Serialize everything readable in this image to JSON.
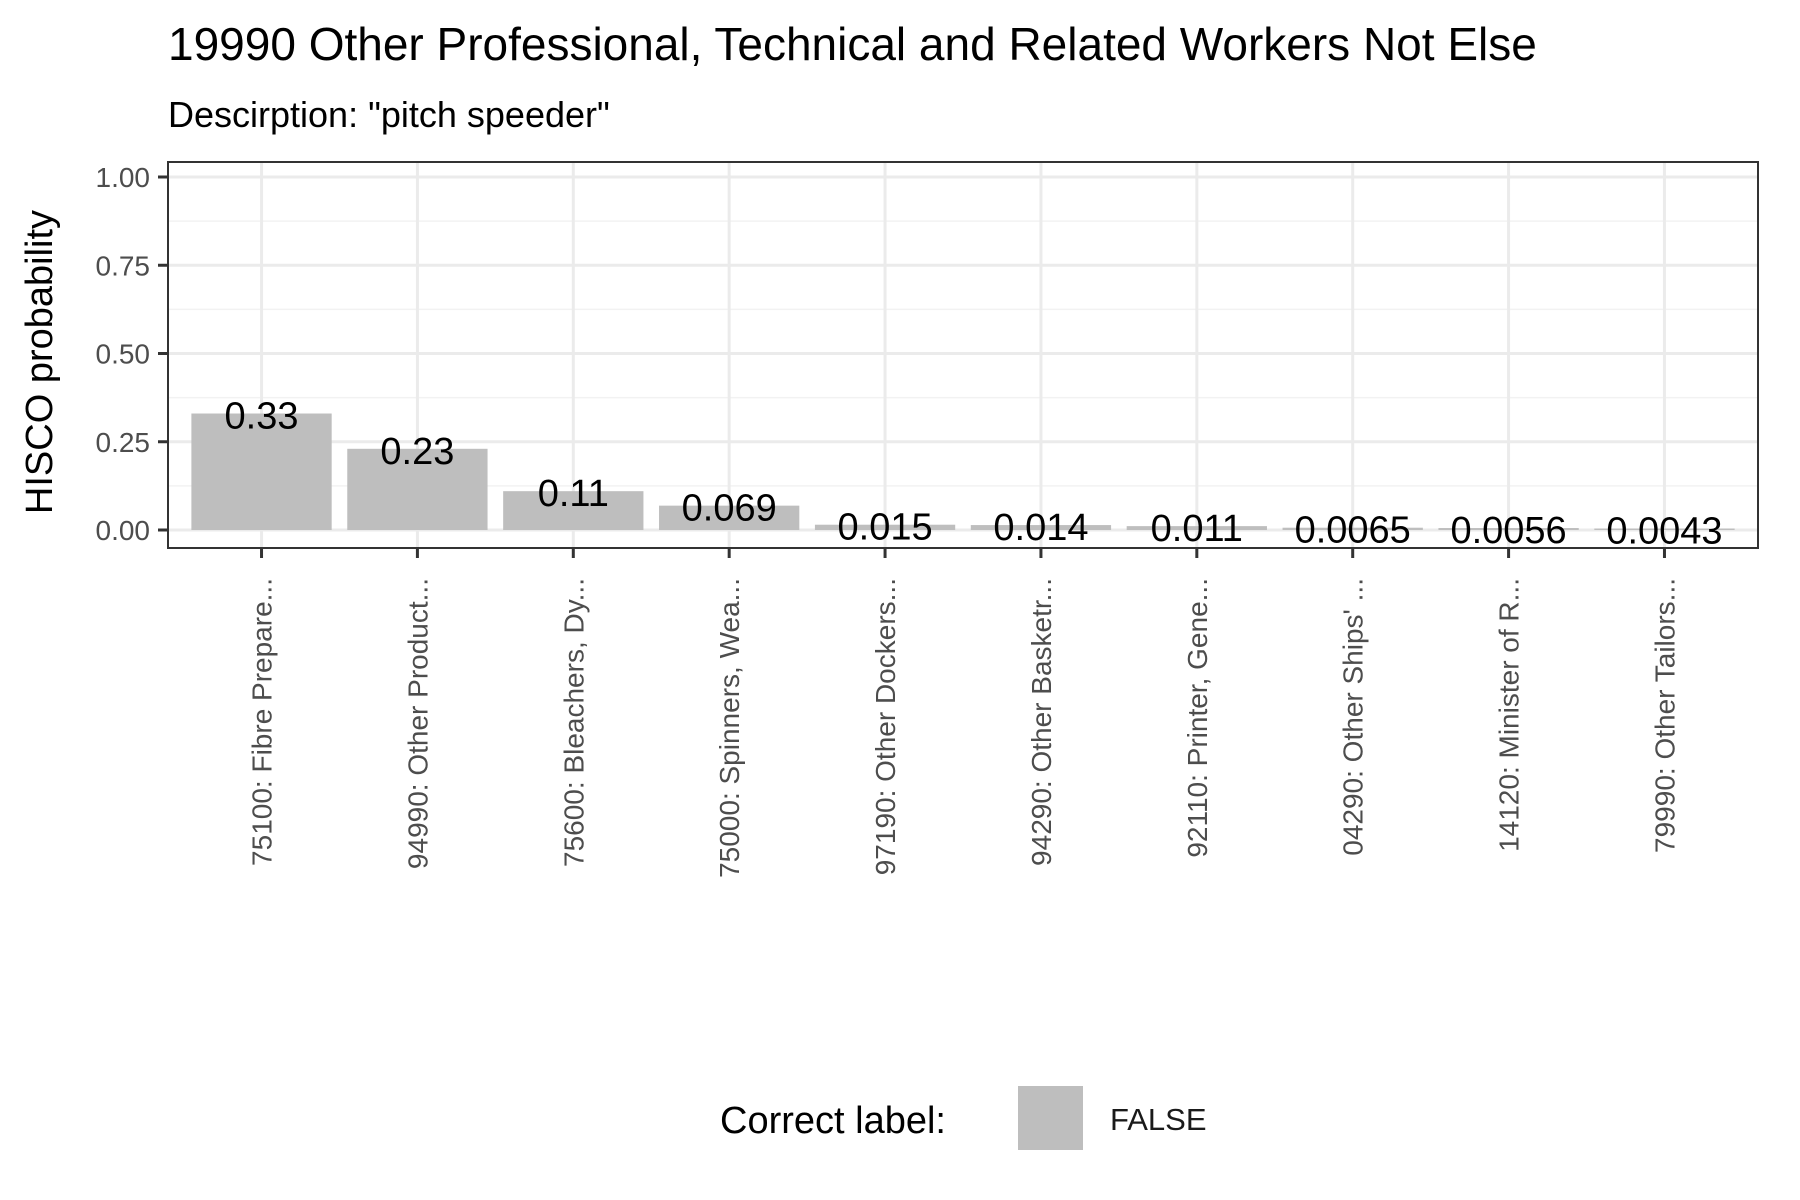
{
  "chart_data": {
    "type": "bar",
    "title": "19990 Other Professional, Technical and Related Workers Not Else",
    "subtitle": "Descirption: \"pitch speeder\"",
    "xlabel": "",
    "ylabel": "HISCO probability",
    "ylim": [
      0,
      1
    ],
    "yticks": [
      "0.00",
      "0.25",
      "0.50",
      "0.75",
      "1.00"
    ],
    "grid": true,
    "categories": [
      "75100: Fibre Prepare...",
      "94990: Other Product...",
      "75600: Bleachers, Dy...",
      "75000: Spinners, Wea...",
      "97190: Other Dockers...",
      "94290: Other Basketr...",
      "92110: Printer, Gene...",
      "04290: Other Ships' ...",
      "14120: Minister of R...",
      "79990: Other Tailors..."
    ],
    "values": [
      0.33,
      0.23,
      0.11,
      0.069,
      0.015,
      0.014,
      0.011,
      0.0065,
      0.0056,
      0.0043
    ],
    "value_labels": [
      "0.33",
      "0.23",
      "0.11",
      "0.069",
      "0.015",
      "0.014",
      "0.011",
      "0.0065",
      "0.0056",
      "0.0043"
    ],
    "bar_color": "#bebebe",
    "legend": {
      "title": "Correct label:",
      "entries": [
        {
          "label": "FALSE",
          "color": "#bebebe"
        }
      ],
      "position": "bottom"
    }
  }
}
